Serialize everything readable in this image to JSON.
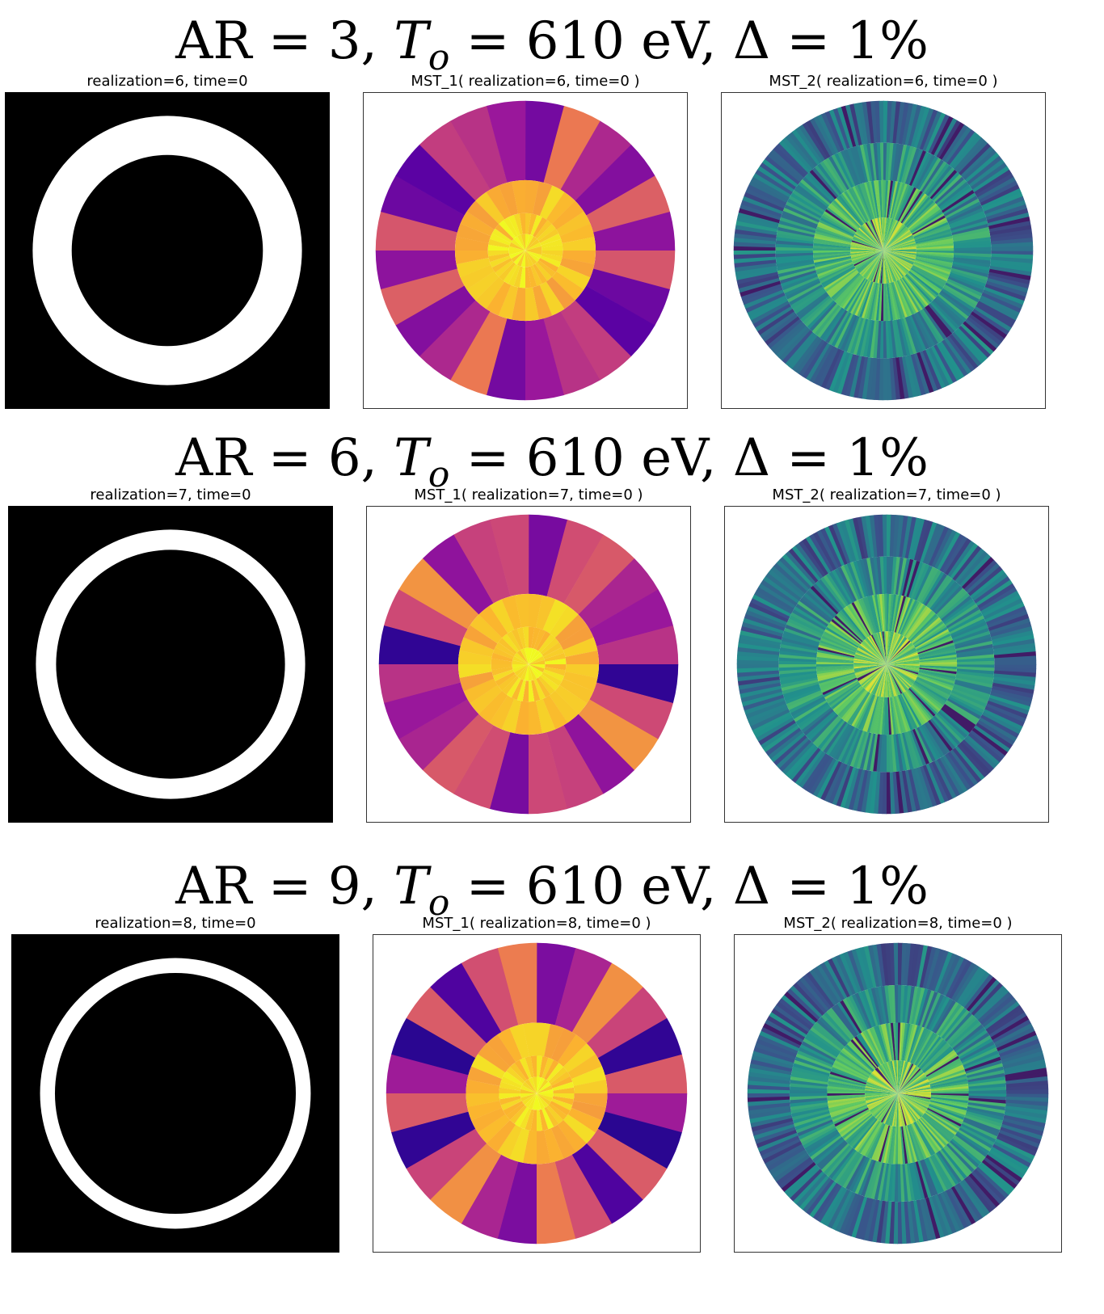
{
  "rows": [
    {
      "title": {
        "ar": "3",
        "temperature": "610 eV",
        "delta": "1%"
      },
      "panels": [
        {
          "label": "realization=6, time=0",
          "kind": "ring",
          "inner_to_outer_radius": 0.71
        },
        {
          "label": "MST_1( realization=6, time=0 )",
          "kind": "mst1",
          "palette": "plasma"
        },
        {
          "label": "MST_2( realization=6, time=0 )",
          "kind": "mst2",
          "palette": "viridis"
        }
      ]
    },
    {
      "title": {
        "ar": "6",
        "temperature": "610 eV",
        "delta": "1%"
      },
      "panels": [
        {
          "label": "realization=7, time=0",
          "kind": "ring",
          "inner_to_outer_radius": 0.85
        },
        {
          "label": "MST_1( realization=7, time=0 )",
          "kind": "mst1",
          "palette": "plasma"
        },
        {
          "label": "MST_2( realization=7, time=0 )",
          "kind": "mst2",
          "palette": "viridis"
        }
      ]
    },
    {
      "title": {
        "ar": "9",
        "temperature": "610 eV",
        "delta": "1%"
      },
      "panels": [
        {
          "label": "realization=8, time=0",
          "kind": "ring",
          "inner_to_outer_radius": 0.89
        },
        {
          "label": "MST_1( realization=8, time=0 )",
          "kind": "mst1",
          "palette": "plasma"
        },
        {
          "label": "MST_2( realization=8, time=0 )",
          "kind": "mst2",
          "palette": "viridis"
        }
      ]
    }
  ],
  "title_tokens": {
    "ar_label": "AR",
    "t_symbol": "T",
    "t_subscript": "o",
    "delta_symbol": "Δ",
    "equals": "=",
    "comma": ","
  }
}
